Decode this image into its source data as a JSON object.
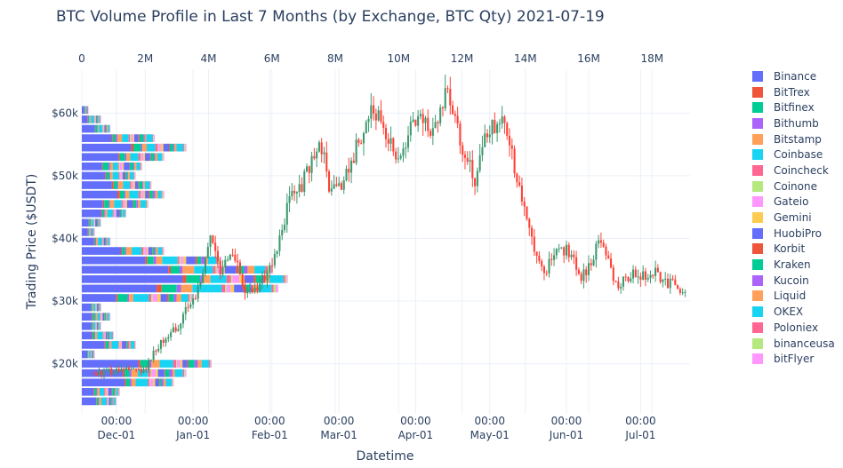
{
  "title": "BTC Volume Profile in Last 7 Months (by Exchange, BTC Qty) 2021-07-19",
  "chart_data": {
    "type": "candlestick+horizontal-stacked-bar",
    "xlabel": "Datetime",
    "ylabel": "Trading Price ($USDT)",
    "x_ticks": [
      {
        "line1": "00:00",
        "line2": "Dec-01"
      },
      {
        "line1": "00:00",
        "line2": "Jan-01"
      },
      {
        "line1": "00:00",
        "line2": "Feb-01"
      },
      {
        "line1": "00:00",
        "line2": "Mar-01"
      },
      {
        "line1": "00:00",
        "line2": "Apr-01"
      },
      {
        "line1": "00:00",
        "line2": "May-01"
      },
      {
        "line1": "00:00",
        "line2": "Jun-01"
      },
      {
        "line1": "00:00",
        "line2": "Jul-01"
      }
    ],
    "y_ticks": [
      "$20k",
      "$30k",
      "$40k",
      "$50k",
      "$60k"
    ],
    "top_axis_ticks": [
      "0",
      "2M",
      "4M",
      "6M",
      "8M",
      "10M",
      "12M",
      "14M",
      "16M",
      "18M"
    ],
    "top_axis_range": [
      0,
      19.2
    ],
    "y_range": [
      12000,
      67000
    ],
    "candlestick_trend": [
      [
        "2020-11-22",
        18500
      ],
      [
        "2020-12-01",
        19000
      ],
      [
        "2020-12-12",
        18800
      ],
      [
        "2020-12-17",
        22500
      ],
      [
        "2020-12-26",
        26000
      ],
      [
        "2021-01-03",
        32000
      ],
      [
        "2021-01-08",
        40500
      ],
      [
        "2021-01-12",
        35000
      ],
      [
        "2021-01-17",
        37500
      ],
      [
        "2021-01-22",
        32000
      ],
      [
        "2021-01-28",
        32500
      ],
      [
        "2021-02-03",
        37000
      ],
      [
        "2021-02-09",
        46500
      ],
      [
        "2021-02-14",
        48500
      ],
      [
        "2021-02-21",
        56000
      ],
      [
        "2021-02-26",
        47000
      ],
      [
        "2021-03-04",
        50000
      ],
      [
        "2021-03-13",
        60000
      ],
      [
        "2021-03-18",
        58500
      ],
      [
        "2021-03-25",
        52500
      ],
      [
        "2021-04-01",
        59000
      ],
      [
        "2021-04-08",
        57500
      ],
      [
        "2021-04-14",
        63500
      ],
      [
        "2021-04-18",
        57000
      ],
      [
        "2021-04-25",
        49500
      ],
      [
        "2021-04-30",
        57500
      ],
      [
        "2021-05-07",
        58500
      ],
      [
        "2021-05-12",
        50000
      ],
      [
        "2021-05-16",
        44000
      ],
      [
        "2021-05-19",
        37000
      ],
      [
        "2021-05-23",
        34500
      ],
      [
        "2021-05-27",
        38000
      ],
      [
        "2021-06-03",
        38000
      ],
      [
        "2021-06-07",
        33500
      ],
      [
        "2021-06-11",
        36500
      ],
      [
        "2021-06-15",
        40000
      ],
      [
        "2021-06-20",
        34000
      ],
      [
        "2021-06-22",
        32500
      ],
      [
        "2021-06-27",
        34500
      ],
      [
        "2021-07-01",
        34000
      ],
      [
        "2021-07-07",
        34500
      ],
      [
        "2021-07-12",
        33000
      ],
      [
        "2021-07-19",
        31500
      ]
    ],
    "exchanges": [
      {
        "name": "Binance",
        "color": "#636efa"
      },
      {
        "name": "BitTrex",
        "color": "#ef553b"
      },
      {
        "name": "Bitfinex",
        "color": "#00cc96"
      },
      {
        "name": "Bithumb",
        "color": "#ab63fa"
      },
      {
        "name": "Bitstamp",
        "color": "#ffa15a"
      },
      {
        "name": "Coinbase",
        "color": "#19d3f3"
      },
      {
        "name": "Coincheck",
        "color": "#ff6692"
      },
      {
        "name": "Coinone",
        "color": "#b6e880"
      },
      {
        "name": "Gateio",
        "color": "#ff97ff"
      },
      {
        "name": "Gemini",
        "color": "#fecb52"
      },
      {
        "name": "HuobiPro",
        "color": "#636efa"
      },
      {
        "name": "Korbit",
        "color": "#ef553b"
      },
      {
        "name": "Kraken",
        "color": "#00cc96"
      },
      {
        "name": "Kucoin",
        "color": "#ab63fa"
      },
      {
        "name": "Liquid",
        "color": "#ffa15a"
      },
      {
        "name": "OKEX",
        "color": "#19d3f3"
      },
      {
        "name": "Poloniex",
        "color": "#ff6692"
      },
      {
        "name": "binanceusa",
        "color": "#b6e880"
      },
      {
        "name": "bitFlyer",
        "color": "#ff97ff"
      }
    ],
    "volume_profile_totals_M": [
      {
        "price": 14000,
        "total": 1.1
      },
      {
        "price": 15500,
        "total": 1.2
      },
      {
        "price": 17000,
        "total": 2.9
      },
      {
        "price": 18500,
        "total": 3.3
      },
      {
        "price": 20000,
        "total": 4.1
      },
      {
        "price": 21500,
        "total": 0.4
      },
      {
        "price": 23000,
        "total": 1.7
      },
      {
        "price": 24500,
        "total": 1.0
      },
      {
        "price": 26000,
        "total": 0.6
      },
      {
        "price": 27500,
        "total": 0.9
      },
      {
        "price": 29000,
        "total": 0.6
      },
      {
        "price": 30500,
        "total": 3.5
      },
      {
        "price": 32000,
        "total": 6.2
      },
      {
        "price": 33500,
        "total": 6.5
      },
      {
        "price": 35000,
        "total": 6.0
      },
      {
        "price": 36500,
        "total": 4.4
      },
      {
        "price": 38000,
        "total": 2.6
      },
      {
        "price": 39500,
        "total": 0.9
      },
      {
        "price": 41000,
        "total": 0.4
      },
      {
        "price": 42500,
        "total": 0.6
      },
      {
        "price": 44000,
        "total": 1.4
      },
      {
        "price": 45500,
        "total": 2.1
      },
      {
        "price": 47000,
        "total": 2.6
      },
      {
        "price": 48500,
        "total": 2.2
      },
      {
        "price": 50000,
        "total": 1.7
      },
      {
        "price": 51500,
        "total": 1.9
      },
      {
        "price": 53000,
        "total": 2.6
      },
      {
        "price": 54500,
        "total": 3.3
      },
      {
        "price": 56000,
        "total": 2.3
      },
      {
        "price": 57500,
        "total": 0.9
      },
      {
        "price": 59000,
        "total": 0.6
      },
      {
        "price": 60500,
        "total": 0.2
      }
    ],
    "legend_position": "right"
  }
}
